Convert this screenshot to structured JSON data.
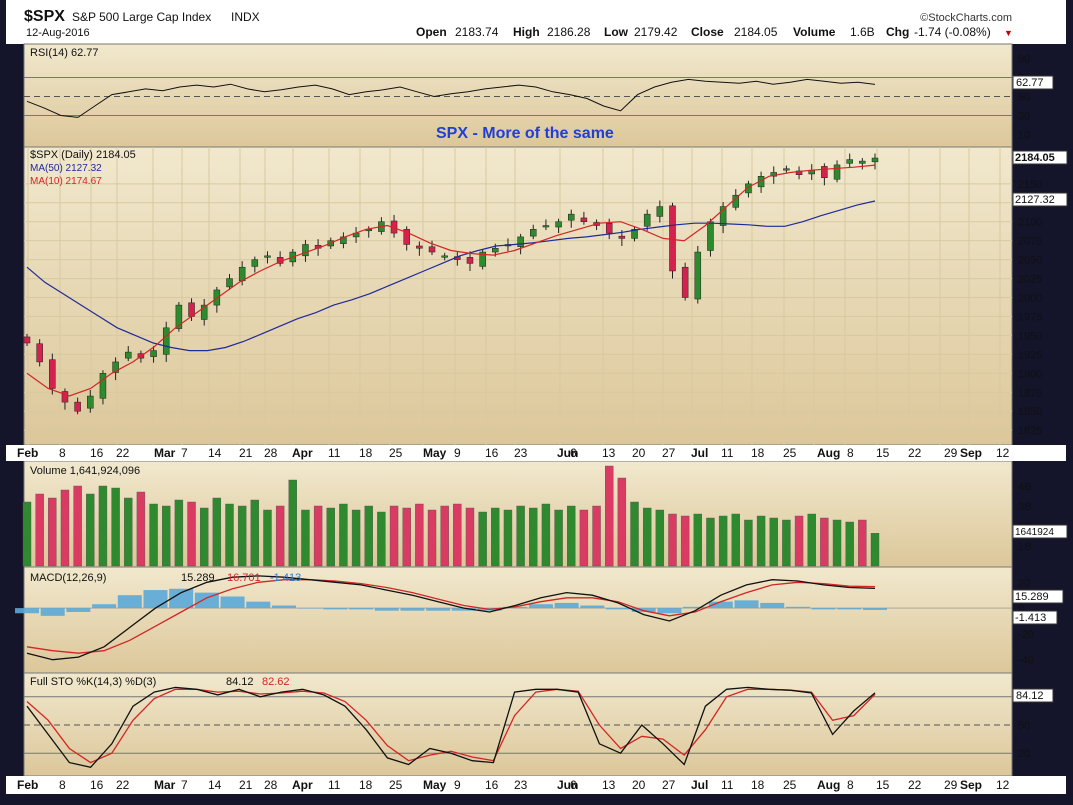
{
  "header": {
    "symbol": "$SPX",
    "name": "S&P 500 Large Cap Index",
    "exchange": "INDX",
    "date": "12-Aug-2016",
    "brand": "©StockCharts.com",
    "ohlc": {
      "open_label": "Open",
      "open": "2183.74",
      "high_label": "High",
      "high": "2186.28",
      "low_label": "Low",
      "low": "2179.42",
      "close_label": "Close",
      "close": "2184.05",
      "volume_label": "Volume",
      "volume": "1.6B",
      "chg_label": "Chg",
      "chg": "-1.74 (-0.08%)",
      "chg_arrow": "▼"
    }
  },
  "colors": {
    "panel_bg": "#e9dcb8",
    "candle_up": "#2d8a2d",
    "candle_down": "#d4224e",
    "ma50": "#1f2a9a",
    "ma10": "#d42525",
    "macd_hist": "#5ba8d8",
    "vol_up": "#2f8a2f",
    "vol_down": "#d93b63",
    "annotation": "#1f3fd6"
  },
  "chart_data": [
    {
      "type": "line",
      "panel": "rsi",
      "legend": "RSI(14) 62.77",
      "last_label": "62.77",
      "ylim": [
        0,
        100
      ],
      "yticks": [
        "90",
        "70",
        "50",
        "30",
        "10"
      ],
      "reference_lines": [
        70,
        50,
        30
      ],
      "series": [
        {
          "name": "RSI(14)",
          "values": [
            45,
            38,
            30,
            28,
            40,
            52,
            55,
            58,
            56,
            60,
            62,
            60,
            63,
            58,
            55,
            57,
            60,
            62,
            58,
            52,
            55,
            57,
            60,
            55,
            50,
            53,
            55,
            58,
            60,
            62,
            60,
            55,
            52,
            48,
            40,
            35,
            52,
            60,
            65,
            68,
            66,
            65,
            64,
            66,
            63,
            65,
            68,
            66,
            64,
            65,
            62.77
          ]
        }
      ]
    },
    {
      "type": "candlestick",
      "panel": "price",
      "title": "SPX - More of the same",
      "legend": [
        "$SPX (Daily) 2184.05",
        "MA(50) 2127.32",
        "MA(10) 2174.67"
      ],
      "last_labels": [
        "2184.05",
        "2127.32"
      ],
      "ylim": [
        1812,
        2192
      ],
      "yticks": [
        "2150",
        "2125",
        "2100",
        "2075",
        "2050",
        "2025",
        "2000",
        "1975",
        "1950",
        "1925",
        "1900",
        "1875",
        "1850",
        "1825"
      ],
      "x_labels": [
        "Feb",
        "8",
        "16",
        "22",
        "Mar",
        "7",
        "14",
        "21",
        "28",
        "Apr",
        "11",
        "18",
        "25",
        "May",
        "9",
        "16",
        "23",
        "Jun",
        "6",
        "13",
        "20",
        "27",
        "Jul",
        "11",
        "18",
        "25",
        "Aug",
        "8",
        "15",
        "22",
        "29",
        "Sep",
        "12"
      ],
      "close": [
        1940,
        1915,
        1880,
        1862,
        1850,
        1870,
        1900,
        1915,
        1928,
        1920,
        1930,
        1960,
        1990,
        1975,
        1990,
        2010,
        2025,
        2040,
        2050,
        2055,
        2045,
        2060,
        2070,
        2065,
        2075,
        2080,
        2085,
        2090,
        2100,
        2085,
        2070,
        2065,
        2060,
        2055,
        2050,
        2045,
        2060,
        2065,
        2070,
        2080,
        2090,
        2095,
        2100,
        2110,
        2100,
        2095,
        2085,
        2078,
        2090,
        2110,
        2120,
        2035,
        2000,
        2060,
        2100,
        2120,
        2135,
        2150,
        2160,
        2165,
        2170,
        2162,
        2168,
        2158,
        2175,
        2182,
        2180,
        2184.05
      ],
      "ma50": [
        2040,
        2020,
        2005,
        1990,
        1975,
        1960,
        1950,
        1940,
        1934,
        1930,
        1930,
        1934,
        1942,
        1952,
        1962,
        1972,
        1980,
        1990,
        1997,
        2005,
        2015,
        2025,
        2035,
        2045,
        2055,
        2062,
        2068,
        2070,
        2072,
        2075,
        2078,
        2080,
        2083,
        2086,
        2090,
        2093,
        2096,
        2098,
        2098,
        2097,
        2096,
        2094,
        2094,
        2100,
        2108,
        2115,
        2122,
        2127.32
      ],
      "ma10": [
        1900,
        1880,
        1870,
        1880,
        1900,
        1915,
        1935,
        1960,
        1980,
        2000,
        2020,
        2035,
        2048,
        2058,
        2068,
        2080,
        2090,
        2095,
        2085,
        2072,
        2062,
        2058,
        2056,
        2062,
        2072,
        2082,
        2090,
        2098,
        2100,
        2090,
        2078,
        2075,
        2095,
        2120,
        2145,
        2160,
        2165,
        2168,
        2170,
        2172,
        2174.67
      ]
    },
    {
      "type": "bar",
      "panel": "volume",
      "legend": "Volume 1,641,924,096",
      "last_label": "1641924",
      "yticks": [
        "4B",
        "3B",
        "2B",
        "1B"
      ],
      "ylim": [
        0,
        5
      ],
      "note_units": "billions",
      "values": [
        3.2,
        3.6,
        3.4,
        3.8,
        4.0,
        3.6,
        4.0,
        3.9,
        3.4,
        3.7,
        3.1,
        3.0,
        3.3,
        3.2,
        2.9,
        3.4,
        3.1,
        3.0,
        3.3,
        2.8,
        3.0,
        4.3,
        2.8,
        3.0,
        2.9,
        3.1,
        2.8,
        3.0,
        2.7,
        3.0,
        2.9,
        3.1,
        2.8,
        3.0,
        3.1,
        2.9,
        2.7,
        2.9,
        2.8,
        3.0,
        2.9,
        3.1,
        2.8,
        3.0,
        2.8,
        3.0,
        5.0,
        4.4,
        3.2,
        2.9,
        2.8,
        2.6,
        2.5,
        2.6,
        2.4,
        2.5,
        2.6,
        2.3,
        2.5,
        2.4,
        2.3,
        2.5,
        2.6,
        2.4,
        2.3,
        2.2,
        2.3,
        1.64
      ]
    },
    {
      "type": "line",
      "panel": "macd",
      "legend_prefix": "MACD(12,26,9)",
      "legend_values": [
        "15.289",
        "16.701",
        "-1.413"
      ],
      "last_labels": [
        "15.289",
        "-1.413"
      ],
      "yticks": [
        "20",
        "0",
        "-20",
        "-40"
      ],
      "ylim": [
        -48,
        28
      ],
      "series": [
        {
          "name": "MACD",
          "values": [
            -35,
            -40,
            -38,
            -30,
            -15,
            0,
            12,
            20,
            24,
            25,
            24,
            22,
            20,
            18,
            14,
            10,
            5,
            0,
            -3,
            2,
            8,
            12,
            10,
            4,
            -5,
            -10,
            -2,
            10,
            18,
            22,
            21,
            18,
            16,
            15.289
          ]
        },
        {
          "name": "Signal",
          "values": [
            -30,
            -33,
            -35,
            -33,
            -25,
            -14,
            -3,
            8,
            15,
            20,
            22,
            22,
            21,
            19,
            16,
            12,
            7,
            2,
            -1,
            1,
            5,
            8,
            8,
            5,
            -2,
            -6,
            -3,
            5,
            12,
            18,
            20,
            19,
            17,
            16.701
          ]
        }
      ],
      "histogram": [
        -4,
        -6,
        -3,
        3,
        10,
        14,
        15,
        12,
        9,
        5,
        2,
        0,
        -1,
        -1,
        -2,
        -2,
        -2,
        -2,
        -2,
        1,
        3,
        4,
        2,
        -1,
        -3,
        -4,
        1,
        5,
        6,
        4,
        1,
        -1,
        -1,
        -1.413
      ]
    },
    {
      "type": "line",
      "panel": "stochastic",
      "legend_prefix": "Full STO %K(14,3) %D(3)",
      "legend_values": [
        "84.12",
        "82.62"
      ],
      "last_label": "84.12",
      "yticks": [
        "80",
        "50",
        "20"
      ],
      "ylim": [
        0,
        100
      ],
      "reference_lines": [
        80,
        50,
        20
      ],
      "series": [
        {
          "name": "%K",
          "values": [
            70,
            40,
            10,
            5,
            30,
            70,
            85,
            90,
            88,
            82,
            88,
            80,
            85,
            88,
            82,
            70,
            45,
            15,
            8,
            25,
            20,
            12,
            10,
            85,
            88,
            88,
            85,
            30,
            20,
            50,
            30,
            8,
            70,
            88,
            90,
            88,
            87,
            84,
            40,
            65,
            84.12
          ]
        },
        {
          "name": "%D",
          "values": [
            75,
            55,
            25,
            10,
            20,
            55,
            78,
            88,
            88,
            85,
            86,
            83,
            84,
            86,
            84,
            75,
            55,
            28,
            12,
            18,
            22,
            16,
            12,
            60,
            85,
            88,
            86,
            50,
            25,
            38,
            35,
            18,
            45,
            80,
            88,
            88,
            87,
            85,
            55,
            60,
            82.62
          ]
        }
      ]
    }
  ]
}
